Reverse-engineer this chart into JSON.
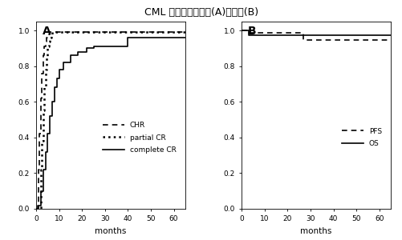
{
  "title": "CML 患者全体の反応(A)と予後(B)",
  "title_fontsize": 9,
  "panel_A_label": "A",
  "panel_B_label": "B",
  "xlabel": "months",
  "xlim": [
    0,
    65
  ],
  "ylim": [
    0.0,
    1.05
  ],
  "yticks": [
    0.0,
    0.2,
    0.4,
    0.6,
    0.8,
    1.0
  ],
  "xticks": [
    0,
    10,
    20,
    30,
    40,
    50,
    60
  ],
  "background_color": "#ffffff",
  "CHR": {
    "x": [
      0,
      1,
      1.5,
      2,
      2.5,
      3,
      3.5,
      4,
      4.5,
      5,
      5.5,
      6,
      7,
      65
    ],
    "y": [
      0.0,
      0.22,
      0.42,
      0.62,
      0.76,
      0.86,
      0.91,
      0.94,
      0.96,
      0.97,
      0.98,
      0.99,
      0.99,
      0.99
    ],
    "linestyle": "dashed",
    "linewidth": 1.2,
    "color": "#000000",
    "label": "CHR",
    "dash_pattern": [
      4,
      3
    ]
  },
  "partial_CR": {
    "x": [
      0,
      2,
      2.5,
      3,
      3.5,
      4,
      4.5,
      5,
      5.5,
      6,
      6.5,
      7,
      8,
      65
    ],
    "y": [
      0.0,
      0.22,
      0.38,
      0.55,
      0.68,
      0.78,
      0.85,
      0.91,
      0.94,
      0.96,
      0.98,
      0.99,
      0.99,
      0.99
    ],
    "linestyle": "dotted",
    "linewidth": 1.8,
    "color": "#000000",
    "label": "partial CR"
  },
  "complete_CR": {
    "x": [
      0,
      0.5,
      2,
      3,
      4,
      5,
      6,
      7,
      8,
      9,
      10,
      12,
      15,
      18,
      22,
      25,
      38,
      40,
      65
    ],
    "y": [
      0.0,
      0.02,
      0.1,
      0.22,
      0.32,
      0.42,
      0.52,
      0.6,
      0.68,
      0.73,
      0.78,
      0.82,
      0.86,
      0.88,
      0.9,
      0.91,
      0.91,
      0.96,
      0.96
    ],
    "linestyle": "solid",
    "linewidth": 1.2,
    "color": "#000000",
    "label": "complete CR"
  },
  "PFS": {
    "x": [
      0,
      3,
      26,
      27,
      65
    ],
    "y": [
      1.0,
      0.985,
      0.985,
      0.945,
      0.945
    ],
    "linestyle": "dashed",
    "linewidth": 1.2,
    "color": "#000000",
    "label": "PFS",
    "dash_pattern": [
      4,
      3
    ]
  },
  "OS": {
    "x": [
      0,
      3,
      65
    ],
    "y": [
      1.0,
      0.975,
      0.975
    ],
    "linestyle": "solid",
    "linewidth": 1.2,
    "color": "#000000",
    "label": "OS"
  }
}
